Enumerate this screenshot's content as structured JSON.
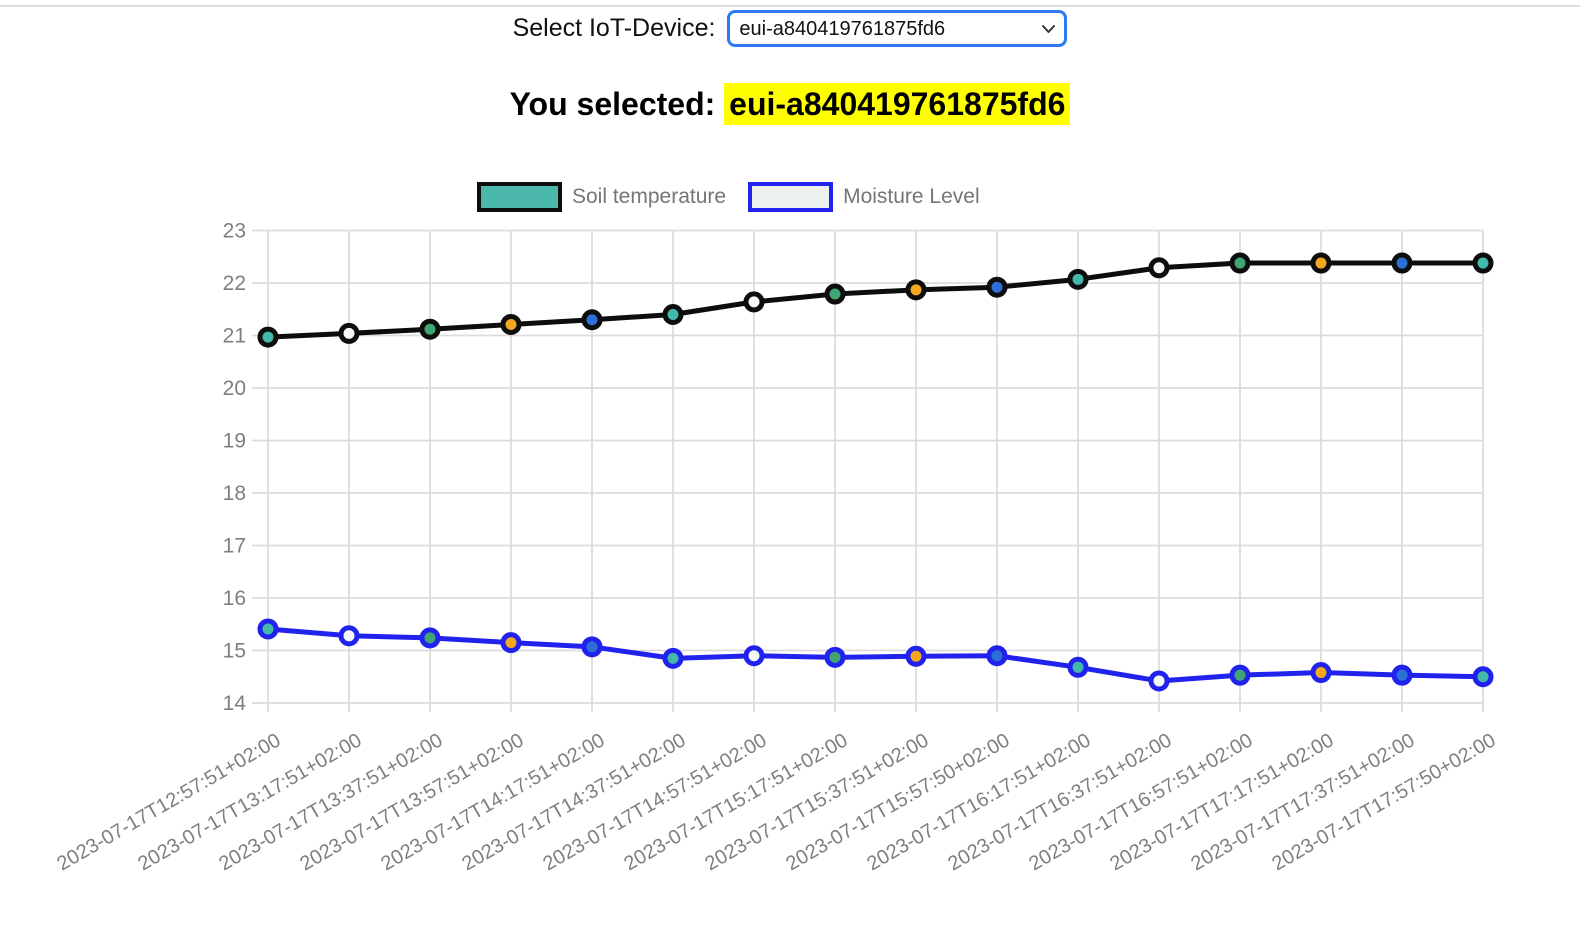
{
  "header": {
    "select_label": "Select IoT-Device:",
    "select_value": "eui-a840419761875fd6"
  },
  "selection_banner": {
    "prefix": "You selected: ",
    "device_id": "eui-a840419761875fd6",
    "highlight_color": "#ffff00"
  },
  "chart_data": {
    "type": "line",
    "x": [
      "2023-07-17T12:57:51+02:00",
      "2023-07-17T13:17:51+02:00",
      "2023-07-17T13:37:51+02:00",
      "2023-07-17T13:57:51+02:00",
      "2023-07-17T14:17:51+02:00",
      "2023-07-17T14:37:51+02:00",
      "2023-07-17T14:57:51+02:00",
      "2023-07-17T15:17:51+02:00",
      "2023-07-17T15:37:51+02:00",
      "2023-07-17T15:57:50+02:00",
      "2023-07-17T16:17:51+02:00",
      "2023-07-17T16:37:51+02:00",
      "2023-07-17T16:57:51+02:00",
      "2023-07-17T17:17:51+02:00",
      "2023-07-17T17:37:51+02:00",
      "2023-07-17T17:57:50+02:00"
    ],
    "series": [
      {
        "name": "Soil temperature",
        "line_color": "#0d0d0d",
        "legend_fill": "#4cb8ac",
        "legend_border": "#0d0d0d",
        "values": [
          20.97,
          21.04,
          21.12,
          21.21,
          21.3,
          21.4,
          21.64,
          21.79,
          21.87,
          21.92,
          22.07,
          22.29,
          22.38,
          22.38,
          22.38,
          22.38
        ]
      },
      {
        "name": "Moisture Level",
        "line_color": "#2222ee",
        "legend_fill": "#edf1ee",
        "legend_border": "#2222ee",
        "values": [
          15.41,
          15.28,
          15.24,
          15.15,
          15.07,
          14.85,
          14.9,
          14.87,
          14.89,
          14.9,
          14.68,
          14.42,
          14.53,
          14.58,
          14.53,
          14.5
        ]
      }
    ],
    "marker_fill_cycle": [
      "#45b8ac",
      "#f5f9f5",
      "#3fa573",
      "#f3a71e",
      "#2c6fd6"
    ],
    "title": "",
    "xlabel": "",
    "ylabel": "",
    "ylim": [
      14,
      23
    ],
    "yticks": [
      23,
      22,
      21,
      20,
      19,
      18,
      17,
      16,
      15,
      14
    ],
    "grid": true,
    "grid_color": "#dcdcdc",
    "axis_label_color": "#7f7f7f",
    "legend_position": "top-center"
  }
}
